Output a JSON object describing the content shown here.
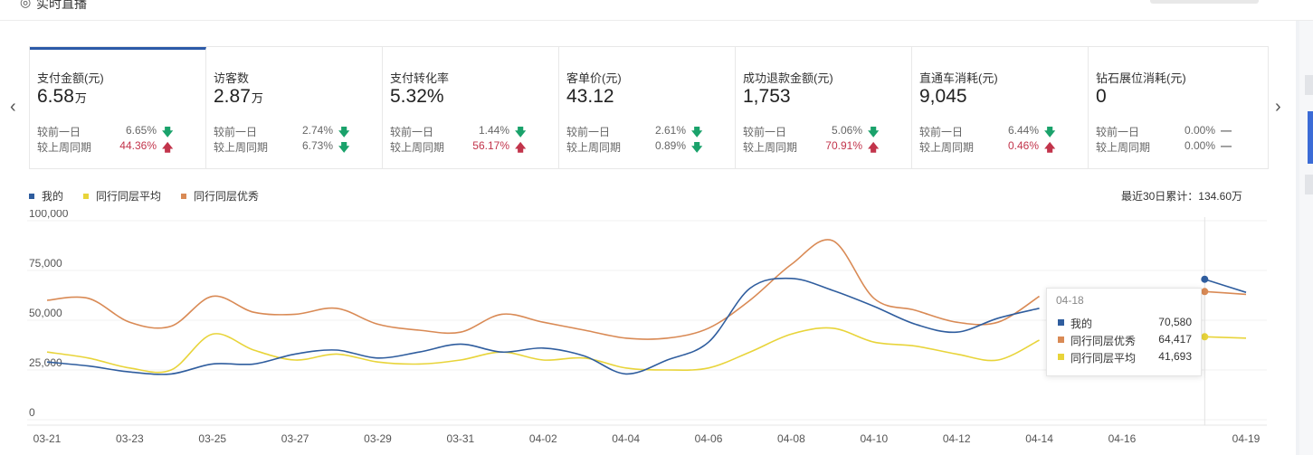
{
  "header": {
    "title": "实时直播"
  },
  "nav": {
    "prev": "‹",
    "next": "›"
  },
  "metrics": [
    {
      "label": "支付金额(元)",
      "value": "6.58",
      "unit": "万",
      "day_label": "较前一日",
      "day_value": "6.65%",
      "day_dir": "down",
      "week_label": "较上周同期",
      "week_value": "44.36%",
      "week_dir": "up",
      "active": true
    },
    {
      "label": "访客数",
      "value": "2.87",
      "unit": "万",
      "day_label": "较前一日",
      "day_value": "2.74%",
      "day_dir": "down",
      "week_label": "较上周同期",
      "week_value": "6.73%",
      "week_dir": "down"
    },
    {
      "label": "支付转化率",
      "value": "5.32%",
      "unit": "",
      "day_label": "较前一日",
      "day_value": "1.44%",
      "day_dir": "down",
      "week_label": "较上周同期",
      "week_value": "56.17%",
      "week_dir": "up"
    },
    {
      "label": "客单价(元)",
      "value": "43.12",
      "unit": "",
      "day_label": "较前一日",
      "day_value": "2.61%",
      "day_dir": "down",
      "week_label": "较上周同期",
      "week_value": "0.89%",
      "week_dir": "down"
    },
    {
      "label": "成功退款金额(元)",
      "value": "1,753",
      "unit": "",
      "day_label": "较前一日",
      "day_value": "5.06%",
      "day_dir": "down",
      "week_label": "较上周同期",
      "week_value": "70.91%",
      "week_dir": "up"
    },
    {
      "label": "直通车消耗(元)",
      "value": "9,045",
      "unit": "",
      "day_label": "较前一日",
      "day_value": "6.44%",
      "day_dir": "down",
      "week_label": "较上周同期",
      "week_value": "0.46%",
      "week_dir": "up"
    },
    {
      "label": "钻石展位消耗(元)",
      "value": "0",
      "unit": "",
      "day_label": "较前一日",
      "day_value": "0.00%",
      "day_dir": "flat",
      "week_label": "较上周同期",
      "week_value": "0.00%",
      "week_dir": "flat"
    }
  ],
  "legend": [
    {
      "name": "我的",
      "color": "#2f5d9e"
    },
    {
      "name": "同行同层平均",
      "color": "#e8d43a"
    },
    {
      "name": "同行同层优秀",
      "color": "#d98a55"
    }
  ],
  "total": "最近30日累计：134.60万",
  "chart_data": {
    "type": "line",
    "categories": [
      "03-21",
      "03-22",
      "03-23",
      "03-24",
      "03-25",
      "03-26",
      "03-27",
      "03-28",
      "03-29",
      "03-30",
      "03-31",
      "04-01",
      "04-02",
      "04-03",
      "04-04",
      "04-05",
      "04-06",
      "04-07",
      "04-08",
      "04-09",
      "04-10",
      "04-11",
      "04-12",
      "04-13",
      "04-14",
      "04-15",
      "04-16",
      "04-17",
      "04-18",
      "04-19"
    ],
    "tick_labels": [
      "03-21",
      "03-23",
      "03-25",
      "03-27",
      "03-29",
      "03-31",
      "04-02",
      "04-04",
      "04-06",
      "04-08",
      "04-10",
      "04-12",
      "04-14",
      "04-16",
      "04-19"
    ],
    "y_ticks": [
      "0",
      "25,000",
      "50,000",
      "75,000",
      "100,000"
    ],
    "ylim": [
      0,
      100000
    ],
    "series": [
      {
        "name": "我的",
        "color": "#2f5d9e",
        "values": [
          29000,
          27000,
          24000,
          23000,
          28000,
          28000,
          33000,
          35000,
          31000,
          34000,
          38000,
          34000,
          36000,
          32000,
          23000,
          30000,
          39000,
          66000,
          71000,
          65000,
          57000,
          48000,
          44000,
          51000,
          56000,
          null,
          null,
          null,
          70580,
          64000
        ]
      },
      {
        "name": "同行同层平均",
        "color": "#e8d43a",
        "values": [
          34000,
          31000,
          26000,
          25000,
          43000,
          35000,
          30000,
          33000,
          29000,
          28000,
          30000,
          34000,
          30000,
          31000,
          26000,
          25000,
          26000,
          34000,
          43000,
          46000,
          39000,
          37000,
          33000,
          30000,
          40000,
          null,
          null,
          null,
          41693,
          41000
        ]
      },
      {
        "name": "同行同层优秀",
        "color": "#d98a55",
        "values": [
          60000,
          61000,
          49000,
          47000,
          62000,
          54000,
          53000,
          56000,
          48000,
          45000,
          44000,
          53000,
          49000,
          45000,
          41000,
          41000,
          46000,
          60000,
          78000,
          90000,
          61000,
          55000,
          49000,
          49000,
          62000,
          null,
          null,
          null,
          64417,
          63000
        ]
      }
    ]
  },
  "tooltip": {
    "date": "04-18",
    "rows": [
      {
        "name": "我的",
        "value": "70,580",
        "color": "#2f5d9e"
      },
      {
        "name": "同行同层优秀",
        "value": "64,417",
        "color": "#d98a55"
      },
      {
        "name": "同行同层平均",
        "value": "41,693",
        "color": "#e8d43a"
      }
    ]
  }
}
